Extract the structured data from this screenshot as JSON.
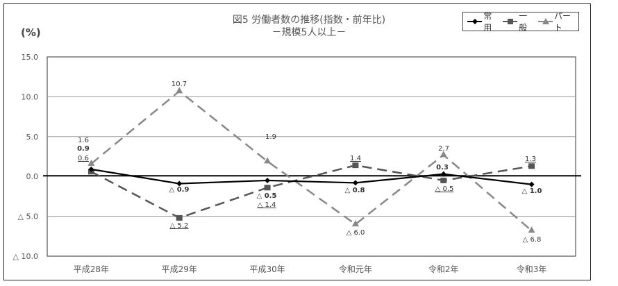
{
  "title": {
    "line1": "図5  労働者数の推移(指数・前年比)",
    "line2": "－規模5人以上－"
  },
  "unit_label": "(%)",
  "legend": [
    {
      "name": "常用",
      "marker": "diamond",
      "color": "#000000",
      "dash": "solid"
    },
    {
      "name": "一般",
      "marker": "square",
      "color": "#555555",
      "dash": "dashed"
    },
    {
      "name": "パート",
      "marker": "triangle",
      "color": "#888888",
      "dash": "dashed"
    }
  ],
  "chart_data": {
    "type": "line",
    "title": "図5  労働者数の推移(指数・前年比) －規模5人以上－",
    "xlabel": "",
    "ylabel": "(%)",
    "ylim": [
      -10.0,
      15.0
    ],
    "yticks": [
      "15.0",
      "10.0",
      "5.0",
      "0.0",
      "△ 5.0",
      "△ 10.0"
    ],
    "ytick_values": [
      15,
      10,
      5,
      0,
      -5,
      -10
    ],
    "grid": true,
    "legend_position": "top-right",
    "categories": [
      "平成28年",
      "平成29年",
      "平成30年",
      "令和元年",
      "令和2年",
      "令和3年"
    ],
    "series": [
      {
        "name": "常用",
        "values": [
          0.9,
          -0.9,
          -0.5,
          -0.8,
          0.3,
          -1.0
        ],
        "labels": [
          "0.9",
          "△ 0.9",
          "△ 0.5",
          "△ 0.8",
          "0.3",
          "△ 1.0"
        ]
      },
      {
        "name": "一般",
        "values": [
          0.6,
          -5.2,
          -1.4,
          1.4,
          -0.5,
          1.3
        ],
        "labels": [
          "0.6",
          "△ 5.2",
          "△ 1.4",
          "1.4",
          "△ 0.5",
          "1.3"
        ]
      },
      {
        "name": "パート",
        "values": [
          1.6,
          10.7,
          1.9,
          -6.0,
          2.7,
          -6.8
        ],
        "labels": [
          "1.6",
          "10.7",
          "1.9",
          "△ 6.0",
          "2.7",
          "△ 6.8"
        ]
      }
    ]
  }
}
